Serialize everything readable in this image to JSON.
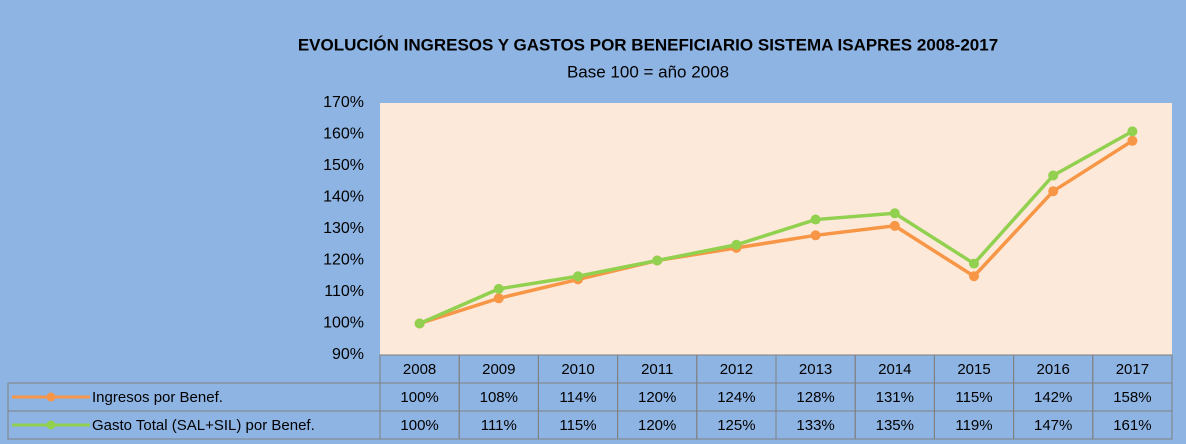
{
  "chart_data": {
    "type": "line",
    "title": "EVOLUCIÓN INGRESOS Y GASTOS POR BENEFICIARIO SISTEMA ISAPRES 2008-2017",
    "subtitle": "Base 100 = año 2008",
    "categories": [
      "2008",
      "2009",
      "2010",
      "2011",
      "2012",
      "2013",
      "2014",
      "2015",
      "2016",
      "2017"
    ],
    "series": [
      {
        "name": "Ingresos por Benef.",
        "color": "#f79646",
        "values": [
          100,
          108,
          114,
          120,
          124,
          128,
          131,
          115,
          142,
          158
        ],
        "value_labels": [
          "100%",
          "108%",
          "114%",
          "120%",
          "124%",
          "128%",
          "131%",
          "115%",
          "142%",
          "158%"
        ]
      },
      {
        "name": "Gasto Total (SAL+SIL) por Benef.",
        "color": "#92d050",
        "values": [
          100,
          111,
          115,
          120,
          125,
          133,
          135,
          119,
          147,
          161
        ],
        "value_labels": [
          "100%",
          "111%",
          "115%",
          "120%",
          "125%",
          "133%",
          "135%",
          "119%",
          "147%",
          "161%"
        ]
      }
    ],
    "ylim": [
      90,
      170
    ],
    "yticks": [
      {
        "value": 90,
        "label": "90%"
      },
      {
        "value": 100,
        "label": "100%"
      },
      {
        "value": 110,
        "label": "110%"
      },
      {
        "value": 120,
        "label": "120%"
      },
      {
        "value": 130,
        "label": "130%"
      },
      {
        "value": 140,
        "label": "140%"
      },
      {
        "value": 150,
        "label": "150%"
      },
      {
        "value": 160,
        "label": "160%"
      },
      {
        "value": 170,
        "label": "170%"
      }
    ],
    "grid": false
  }
}
